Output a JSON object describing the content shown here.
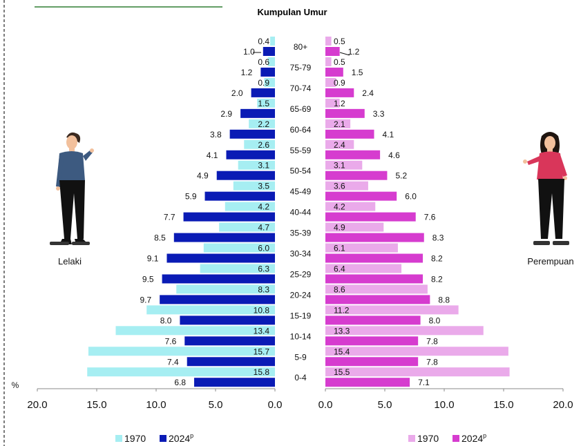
{
  "chart_data": {
    "type": "bar",
    "title": "Kumpulan Umur",
    "y_unit": "%",
    "x_ticks": [
      "20.0",
      "15.0",
      "10.0",
      "5.0",
      "0.0"
    ],
    "categories": [
      "80+",
      "75-79",
      "70-74",
      "65-69",
      "60-64",
      "55-59",
      "50-54",
      "45-49",
      "40-44",
      "35-39",
      "30-34",
      "25-29",
      "20-24",
      "15-19",
      "10-14",
      "5-9",
      "0-4"
    ],
    "male": {
      "label": "Lelaki",
      "series": [
        {
          "name": "1970",
          "color": "#a6eef2",
          "values": [
            0.4,
            0.6,
            0.9,
            1.5,
            2.2,
            2.6,
            3.1,
            3.5,
            4.2,
            4.7,
            6.0,
            6.3,
            8.3,
            10.8,
            13.4,
            15.7,
            15.8
          ]
        },
        {
          "name": "2024",
          "name_sup": "p",
          "color": "#0a1bb5",
          "values": [
            1.0,
            1.2,
            2.0,
            2.9,
            3.8,
            4.1,
            4.9,
            5.9,
            7.7,
            8.5,
            9.1,
            9.5,
            9.7,
            8.0,
            7.6,
            7.4,
            6.8
          ]
        }
      ]
    },
    "female": {
      "label": "Perempuan",
      "series": [
        {
          "name": "1970",
          "color": "#eaaaea",
          "values": [
            0.5,
            0.5,
            0.9,
            1.2,
            2.1,
            2.4,
            3.1,
            3.6,
            4.2,
            4.9,
            6.1,
            6.4,
            8.6,
            11.2,
            13.3,
            15.4,
            15.5
          ]
        },
        {
          "name": "2024",
          "name_sup": "p",
          "color": "#d63ccf",
          "values": [
            1.2,
            1.5,
            2.4,
            3.3,
            4.1,
            4.6,
            5.2,
            6.0,
            7.6,
            8.3,
            8.2,
            8.2,
            8.8,
            8.0,
            7.8,
            7.8,
            7.1
          ]
        }
      ]
    },
    "xlim": [
      0,
      20
    ]
  }
}
